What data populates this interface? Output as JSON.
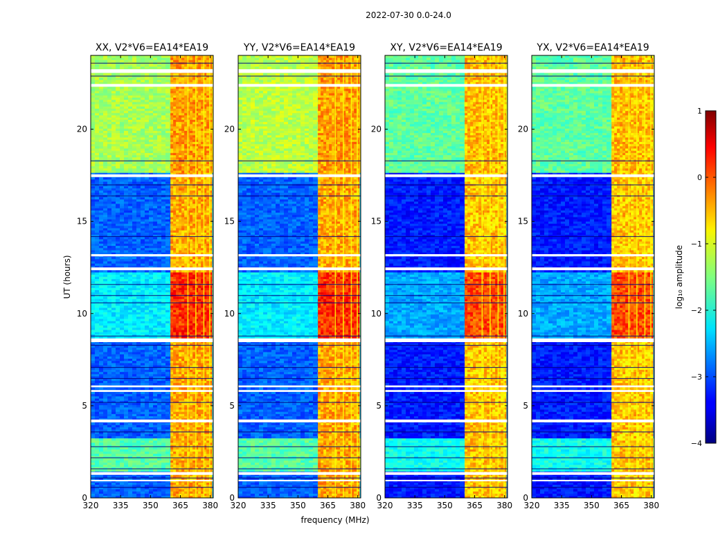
{
  "figure": {
    "suptitle": "2022-07-30 0.0-24.0"
  },
  "chart_data": {
    "type": "heatmap",
    "panels": [
      {
        "title": "XX, V2*V6=EA14*EA19",
        "pol": "XX"
      },
      {
        "title": "YY, V2*V6=EA14*EA19",
        "pol": "YY"
      },
      {
        "title": "XY, V2*V6=EA14*EA19",
        "pol": "XY"
      },
      {
        "title": "YX, V2*V6=EA14*EA19",
        "pol": "YX"
      }
    ],
    "xlabel": "frequency (MHz)",
    "ylabel": "UT (hours)",
    "xlim": [
      320,
      381.5
    ],
    "ylim": [
      0,
      24
    ],
    "xticks": [
      320,
      335,
      350,
      365,
      380
    ],
    "yticks": [
      0,
      5,
      10,
      15,
      20
    ],
    "colorbar": {
      "label": "log₁₀ amplitude",
      "ticks": [
        1,
        0,
        -1,
        -2,
        -3,
        -4
      ],
      "tick_labels": [
        "1",
        "0",
        "−1",
        "−2",
        "−3",
        "−4"
      ],
      "range": [
        -4,
        1
      ],
      "colormap": "jet"
    },
    "band": {
      "high_amplitude_start_mhz": 360,
      "high_amplitude_end_mhz": 381
    }
  },
  "colors": {
    "jet_low": "#00007f",
    "jet_mid": "#7fff7f",
    "jet_high": "#7f0000"
  }
}
